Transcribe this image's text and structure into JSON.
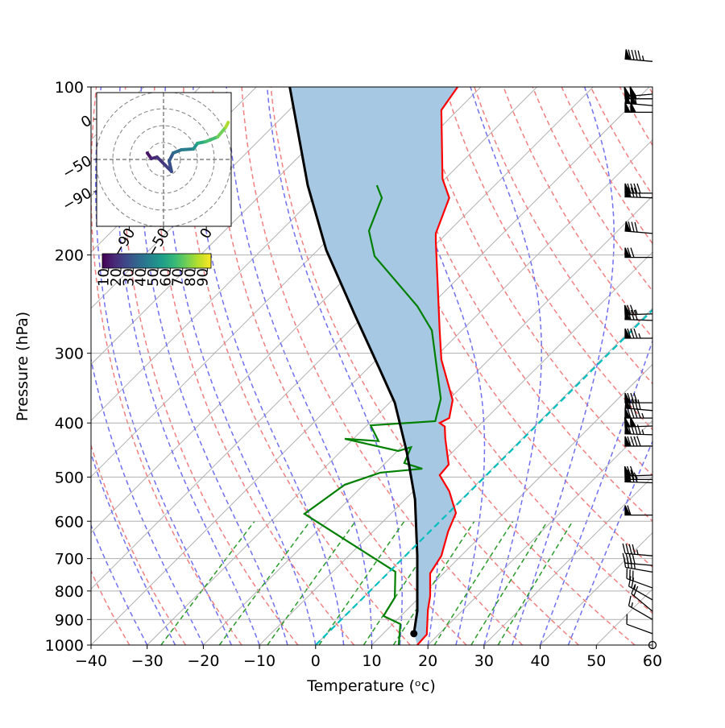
{
  "chart_data": [
    {
      "type": "skewt",
      "xlabel": "Temperature (ᵒc)",
      "ylabel": "Pressure (hPa)",
      "xlim": [
        -40,
        60
      ],
      "ylim": [
        1000,
        100
      ],
      "log_y": true,
      "grid": true,
      "skew": true,
      "xticks": [
        {
          "value": -40,
          "label": "−40"
        },
        {
          "value": -30,
          "label": "−30"
        },
        {
          "value": -20,
          "label": "−20"
        },
        {
          "value": -10,
          "label": "−10"
        },
        0,
        10,
        20,
        30,
        40,
        50,
        60
      ],
      "yticks": [
        100,
        200,
        300,
        400,
        500,
        600,
        700,
        800,
        900,
        1000
      ],
      "shade_between": [
        2,
        0
      ],
      "shade_color": "#a6c8e2",
      "series": [
        {
          "color": "#ff0000",
          "x": [
            18.1,
            19.8,
            20.0,
            20.4,
            20.4,
            22.4,
            23.6,
            25.0,
            23.8,
            22.1,
            23.7,
            23.1,
            23.0,
            22.1,
            23.8,
            24.4,
            22.4,
            22.1,
            21.4,
            21.4,
            23.8,
            22.6,
            22.4,
            25.3
          ],
          "y": [
            1000,
            957,
            865,
            817,
            744,
            692,
            626,
            580,
            530,
            496,
            475,
            427,
            406,
            400,
            392,
            364,
            308,
            273,
            189,
            183,
            158,
            146,
            110,
            100
          ]
        },
        {
          "color": "#008000",
          "x": [
            14.8,
            15.1,
            12.1,
            14.1,
            14.2,
            -2.0,
            5.2,
            11.5,
            19.0,
            15.8,
            17.0,
            14.7,
            5.2,
            11.2,
            9.8,
            21.3,
            22.3,
            20.7,
            18.1,
            10.5,
            9.5,
            11.8,
            10.9
          ],
          "y": [
            1000,
            917,
            887,
            822,
            739,
            582,
            516,
            491,
            483,
            472,
            442,
            449,
            427,
            431,
            404,
            397,
            362,
            273,
            247,
            201,
            181,
            158,
            150
          ]
        },
        {
          "color": "#000000",
          "start_marker": true,
          "x": [
            17.5,
            18.1,
            18.1,
            17.7,
            16.2,
            14.1,
            11.5,
            6.9,
            1.9,
            -1.4,
            -4.6
          ],
          "y": [
            954,
            869,
            692,
            548,
            449,
            368,
            322,
            255,
            196,
            150,
            100
          ]
        },
        {
          "color": "#00bfbf",
          "dashed": true,
          "x": [
            0,
            60
          ],
          "y": [
            1000,
            251
          ]
        }
      ],
      "wind_barbs": {
        "pressure": [
          90,
          103,
          105,
          108,
          111,
          155,
          158,
          183,
          202,
          255,
          262,
          282,
          368,
          380,
          392,
          405,
          420,
          440,
          496,
          505,
          512,
          585,
          692,
          720,
          740,
          790,
          830,
          870,
          900,
          954,
          1000
        ],
        "speed": [
          95,
          100,
          105,
          110,
          100,
          90,
          85,
          80,
          70,
          75,
          80,
          85,
          80,
          90,
          95,
          100,
          95,
          90,
          70,
          75,
          80,
          60,
          45,
          40,
          35,
          30,
          25,
          20,
          15,
          10,
          0
        ],
        "direction": [
          275,
          265,
          270,
          275,
          270,
          270,
          272,
          275,
          270,
          268,
          272,
          270,
          270,
          275,
          270,
          268,
          272,
          270,
          268,
          270,
          272,
          270,
          275,
          275,
          280,
          290,
          300,
          310,
          300,
          290,
          0
        ]
      }
    },
    {
      "type": "hodograph",
      "xlim": [
        -128,
        29
      ],
      "ylim": [
        -133,
        33
      ],
      "xticks": [
        {
          "value": -90,
          "label": "−90"
        },
        {
          "value": -50,
          "label": "−50"
        },
        0
      ],
      "yticks": [
        0,
        {
          "value": -50,
          "label": "−50"
        },
        {
          "value": -90,
          "label": "−90"
        }
      ],
      "x": [
        -68.9,
        -64.2,
        -57.5,
        -48.1,
        -40.6,
        -43.4,
        -38.7,
        -29.2,
        -15.1,
        -10.4,
        -1.0,
        13.2,
        22.6,
        25.5
      ],
      "y": [
        -42,
        -49,
        -47,
        -57,
        -65,
        -52,
        -42,
        -38,
        -37,
        -30,
        -28,
        -22,
        -10,
        -4
      ],
      "c": [
        10,
        14,
        18,
        22,
        26,
        30,
        36,
        42,
        50,
        58,
        66,
        74,
        82,
        90
      ],
      "colormap": "viridis",
      "clim": [
        5,
        93
      ],
      "cticks": [
        10,
        20,
        30,
        40,
        50,
        60,
        70,
        80,
        90
      ]
    }
  ]
}
